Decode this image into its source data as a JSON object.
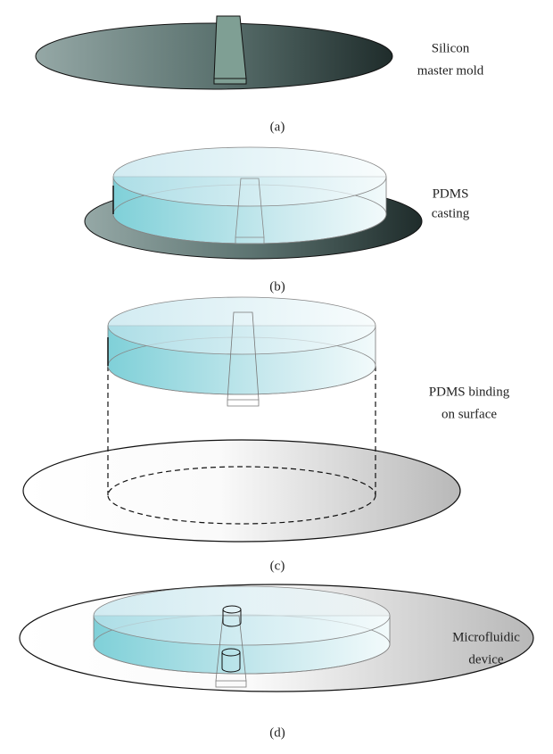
{
  "panels": [
    {
      "label": [
        "Silicon",
        "master mold"
      ],
      "caption": "(a)"
    },
    {
      "label": [
        "PDMS",
        "casting"
      ],
      "caption": "(b)"
    },
    {
      "label": [
        "PDMS binding",
        "on surface"
      ],
      "caption": "(c)"
    },
    {
      "label": [
        "Microfluidic",
        "device"
      ],
      "caption": "(d)"
    }
  ]
}
